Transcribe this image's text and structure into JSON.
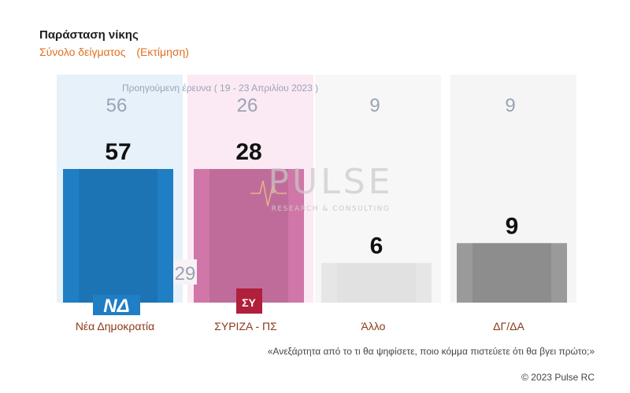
{
  "header": {
    "title": "Παράσταση νίκης",
    "subtitle": "Σύνολο δείγματος",
    "subtitle_tag": "(Εκτίμηση)"
  },
  "previous_survey_label": "Προηγούμενη έρευνα  ( 19 - 23 Απριλίου  2023 )",
  "chart_data": {
    "type": "bar",
    "title": "Παράσταση νίκης",
    "subtitle": "Σύνολο δείγματος (Εκτίμηση)",
    "categories": [
      "Νέα Δημοκρατία",
      "ΣΥΡΙΖΑ - ΠΣ",
      "Άλλο",
      "ΔΓ/ΔΑ"
    ],
    "series": [
      {
        "name": "",
        "values": [
          57,
          28,
          6,
          9
        ]
      },
      {
        "name": "Προηγούμενη έρευνα ( 19 - 23 Απριλίου 2023 )",
        "values": [
          56,
          26,
          9,
          9
        ]
      }
    ],
    "extra_label": "29",
    "colors": [
      "#1f7ec4",
      "#d176a8",
      "#e6e6e6",
      "#9a9a9a"
    ],
    "background_colors": [
      "#e6f1fa",
      "#fbeaf3",
      "#f7f7f7",
      "#f5f5f5"
    ],
    "ylim": [
      0,
      100
    ],
    "grid": false,
    "legend": "none"
  },
  "logos": {
    "nd": "ΝΔ",
    "syriza": "ΣΥ"
  },
  "watermark": {
    "name": "PULSE",
    "tagline": "RESEARCH & CONSULTING"
  },
  "footnote": "«Ανεξάρτητα από το τι θα ψηφίσετε, ποιο κόμμα πιστεύετε ότι θα βγει πρώτο;»",
  "copyright": "© 2023 Pulse RC"
}
